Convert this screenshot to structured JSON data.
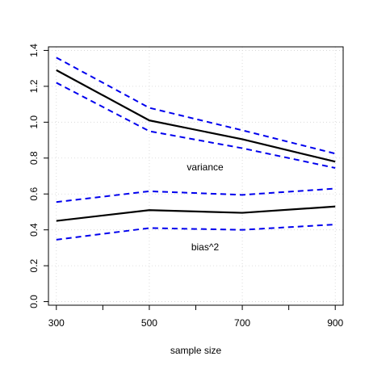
{
  "chart_data": {
    "type": "line",
    "title": "",
    "xlabel": "sample size",
    "ylabel": "",
    "xlim": [
      283,
      917
    ],
    "ylim": [
      -0.02,
      1.42
    ],
    "grid": true,
    "x_ticks": [
      300,
      500,
      700,
      900
    ],
    "x_minor_ticks": [
      400,
      600,
      800
    ],
    "x_tick_labels": [
      "300",
      "500",
      "700",
      "900"
    ],
    "y_ticks": [
      0.0,
      0.2,
      0.4,
      0.6,
      0.8,
      1.0,
      1.2,
      1.4
    ],
    "y_tick_labels": [
      "0.0",
      "0.2",
      "0.4",
      "0.6",
      "0.8",
      "1.0",
      "1.2",
      "1.4"
    ],
    "x": [
      300,
      500,
      700,
      900
    ],
    "series": [
      {
        "values": [
          1.29,
          1.01,
          0.905,
          0.78
        ],
        "color": "#000000",
        "style": "solid"
      },
      {
        "values": [
          1.36,
          1.08,
          0.955,
          0.825
        ],
        "color": "#0000ee",
        "style": "dashed"
      },
      {
        "values": [
          1.22,
          0.95,
          0.855,
          0.745
        ],
        "color": "#0000ee",
        "style": "dashed"
      },
      {
        "values": [
          0.45,
          0.51,
          0.495,
          0.53
        ],
        "color": "#000000",
        "style": "solid"
      },
      {
        "values": [
          0.555,
          0.615,
          0.595,
          0.63
        ],
        "color": "#0000ee",
        "style": "dashed"
      },
      {
        "values": [
          0.345,
          0.41,
          0.4,
          0.43
        ],
        "color": "#0000ee",
        "style": "dashed"
      }
    ],
    "annotations": [
      {
        "text": "variance",
        "x": 620,
        "y": 0.745
      },
      {
        "text": "bias^2",
        "x": 620,
        "y": 0.3
      }
    ]
  }
}
